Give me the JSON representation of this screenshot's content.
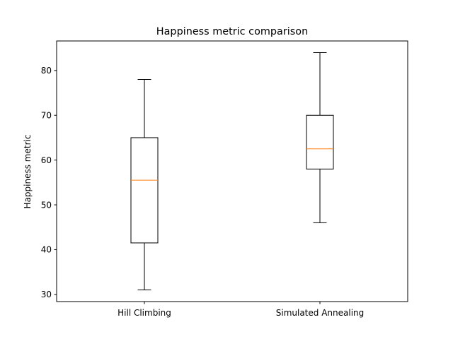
{
  "chart_data": {
    "type": "boxplot",
    "title": "Happiness metric comparison",
    "xlabel": "",
    "ylabel": "Happiness metric",
    "ylim": [
      28.4,
      86.6
    ],
    "yticks": [
      30,
      40,
      50,
      60,
      70,
      80
    ],
    "grid": false,
    "categories": [
      "Hill Climbing",
      "Simulated Annealing"
    ],
    "boxes": [
      {
        "whisker_low": 31,
        "q1": 41.5,
        "median": 55.5,
        "q3": 65,
        "whisker_high": 78
      },
      {
        "whisker_low": 46,
        "q1": 58,
        "median": 62.5,
        "q3": 70,
        "whisker_high": 84
      }
    ],
    "colors": {
      "box": "#000000",
      "median": "#ff7f0e",
      "axes": "#000000"
    }
  }
}
